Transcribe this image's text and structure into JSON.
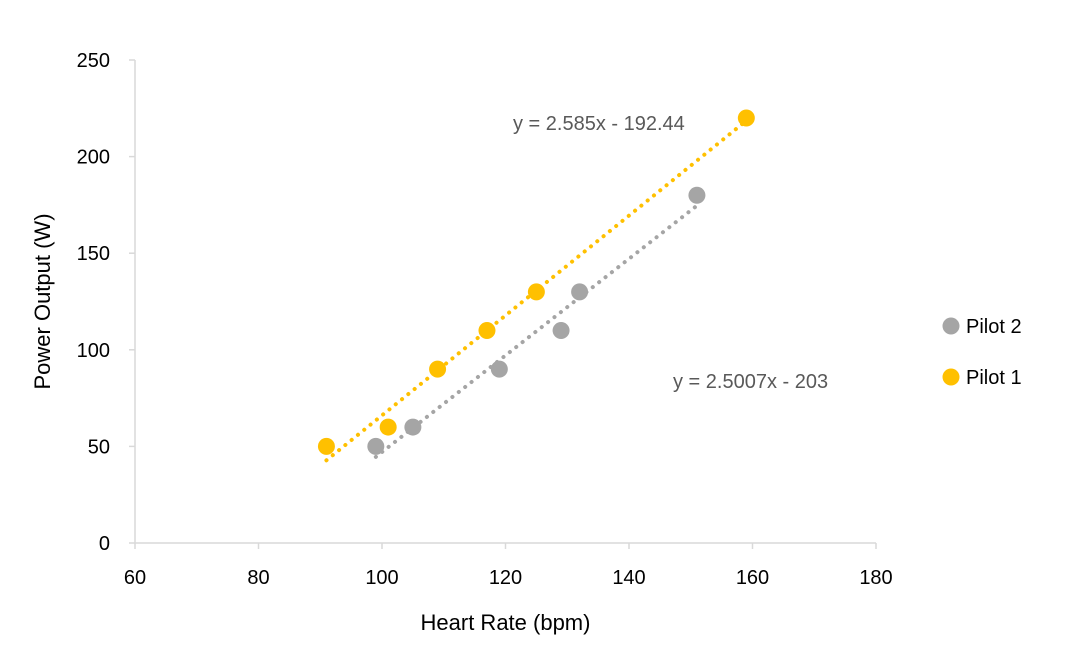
{
  "chart_data": {
    "type": "scatter",
    "title": "",
    "xlabel": "Heart Rate (bpm)",
    "ylabel": "Power Output (W)",
    "xlim": [
      60,
      180
    ],
    "ylim": [
      0,
      250
    ],
    "x_ticks": [
      "60",
      "80",
      "100",
      "120",
      "140",
      "160",
      "180"
    ],
    "y_ticks": [
      "0",
      "50",
      "100",
      "150",
      "200",
      "250"
    ],
    "grid": false,
    "legend_position": "right",
    "series": [
      {
        "name": "Pilot 2",
        "color": "#A5A5A5",
        "points": [
          {
            "x": 99,
            "y": 50
          },
          {
            "x": 105,
            "y": 60
          },
          {
            "x": 119,
            "y": 90
          },
          {
            "x": 129,
            "y": 110
          },
          {
            "x": 132,
            "y": 130
          },
          {
            "x": 151,
            "y": 180
          }
        ],
        "trendline": {
          "slope": 2.5007,
          "intercept": -203,
          "x_range": [
            99,
            151
          ],
          "style": "dotted"
        },
        "equation": "y = 2.5007x - 203"
      },
      {
        "name": "Pilot 1",
        "color": "#FFC000",
        "points": [
          {
            "x": 91,
            "y": 50
          },
          {
            "x": 101,
            "y": 60
          },
          {
            "x": 109,
            "y": 90
          },
          {
            "x": 117,
            "y": 110
          },
          {
            "x": 125,
            "y": 130
          },
          {
            "x": 159,
            "y": 220
          }
        ],
        "trendline": {
          "slope": 2.585,
          "intercept": -192.44,
          "x_range": [
            91,
            159
          ],
          "style": "dotted"
        },
        "equation": "y = 2.585x - 192.44"
      }
    ]
  }
}
